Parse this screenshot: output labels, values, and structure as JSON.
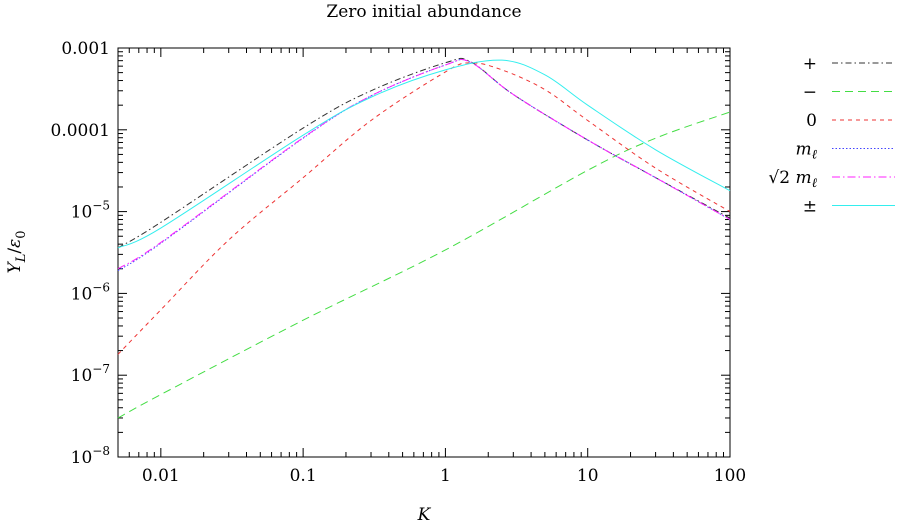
{
  "chart_data": {
    "type": "line",
    "title": "Zero initial abundance",
    "xlabel": "K",
    "ylabel": "Y_L/ε0",
    "xscale": "log",
    "yscale": "log",
    "xlim": [
      0.005,
      100
    ],
    "ylim": [
      1e-08,
      0.001
    ],
    "grid": false,
    "legend_position": "right-outside",
    "x_ticks": [
      {
        "value": 0.01,
        "label": "0.01"
      },
      {
        "value": 0.1,
        "label": "0.1"
      },
      {
        "value": 1,
        "label": "1"
      },
      {
        "value": 10,
        "label": "10"
      },
      {
        "value": 100,
        "label": "100"
      }
    ],
    "y_ticks": [
      {
        "value": 0.001,
        "label": "0.001"
      },
      {
        "value": 0.0001,
        "label": "0.0001"
      },
      {
        "value": 1e-05,
        "label": "10^-5"
      },
      {
        "value": 1e-06,
        "label": "10^-6"
      },
      {
        "value": 1e-07,
        "label": "10^-7"
      },
      {
        "value": 1e-08,
        "label": "10^-8"
      }
    ],
    "series": [
      {
        "name": "+",
        "color": "#333333",
        "dash": "6,3,1.5,3",
        "x": [
          0.005,
          0.01,
          0.1,
          0.3,
          1,
          1.5,
          3,
          10,
          30,
          100
        ],
        "y": [
          3.6e-06,
          7.4e-06,
          0.000105,
          0.0003,
          0.00066,
          0.00068,
          0.00027,
          7.5e-05,
          2.6e-05,
          8.3e-06
        ]
      },
      {
        "name": "−",
        "color": "#44dd44",
        "dash": "8,5",
        "x": [
          0.005,
          0.01,
          0.1,
          1,
          10,
          30,
          100
        ],
        "y": [
          3e-08,
          5.8e-08,
          4.7e-07,
          3.4e-06,
          3.2e-05,
          7.9e-05,
          0.000165
        ]
      },
      {
        "name": "0",
        "color": "#ee3333",
        "dash": "4,4",
        "x": [
          0.005,
          0.01,
          0.03,
          0.1,
          0.3,
          1,
          1.5,
          2.5,
          5,
          10,
          30,
          100
        ],
        "y": [
          1.8e-07,
          6.3e-07,
          4.5e-06,
          2.6e-05,
          0.00013,
          0.00051,
          0.00066,
          0.00054,
          0.00031,
          0.00013,
          3.4e-05,
          1e-05
        ]
      },
      {
        "name": "mℓ",
        "color": "#4444ff",
        "dash": "1.5,2",
        "x": [
          0.005,
          0.01,
          0.1,
          0.3,
          1,
          1.5,
          3,
          10,
          30,
          100
        ],
        "y": [
          1.9e-06,
          4.1e-06,
          7.9e-05,
          0.00026,
          0.00062,
          0.00067,
          0.00027,
          7.5e-05,
          2.6e-05,
          8e-06
        ]
      },
      {
        "name": "√2 mℓ",
        "color": "#ff22ff",
        "dash": "8,3,1.5,3",
        "x": [
          0.005,
          0.01,
          0.1,
          0.3,
          1,
          1.5,
          3,
          10,
          30,
          100
        ],
        "y": [
          2e-06,
          4.2e-06,
          8e-05,
          0.00026,
          0.00062,
          0.00067,
          0.00027,
          7.5e-05,
          2.6e-05,
          8e-06
        ]
      },
      {
        "name": "±",
        "color": "#33eeee",
        "dash": "",
        "x": [
          0.005,
          0.01,
          0.1,
          0.3,
          1,
          2.5,
          5,
          10,
          30,
          100
        ],
        "y": [
          3.6e-06,
          6.3e-06,
          8.6e-05,
          0.00025,
          0.00054,
          0.00071,
          0.00047,
          0.0002,
          5.7e-05,
          1.8e-05
        ]
      }
    ]
  }
}
